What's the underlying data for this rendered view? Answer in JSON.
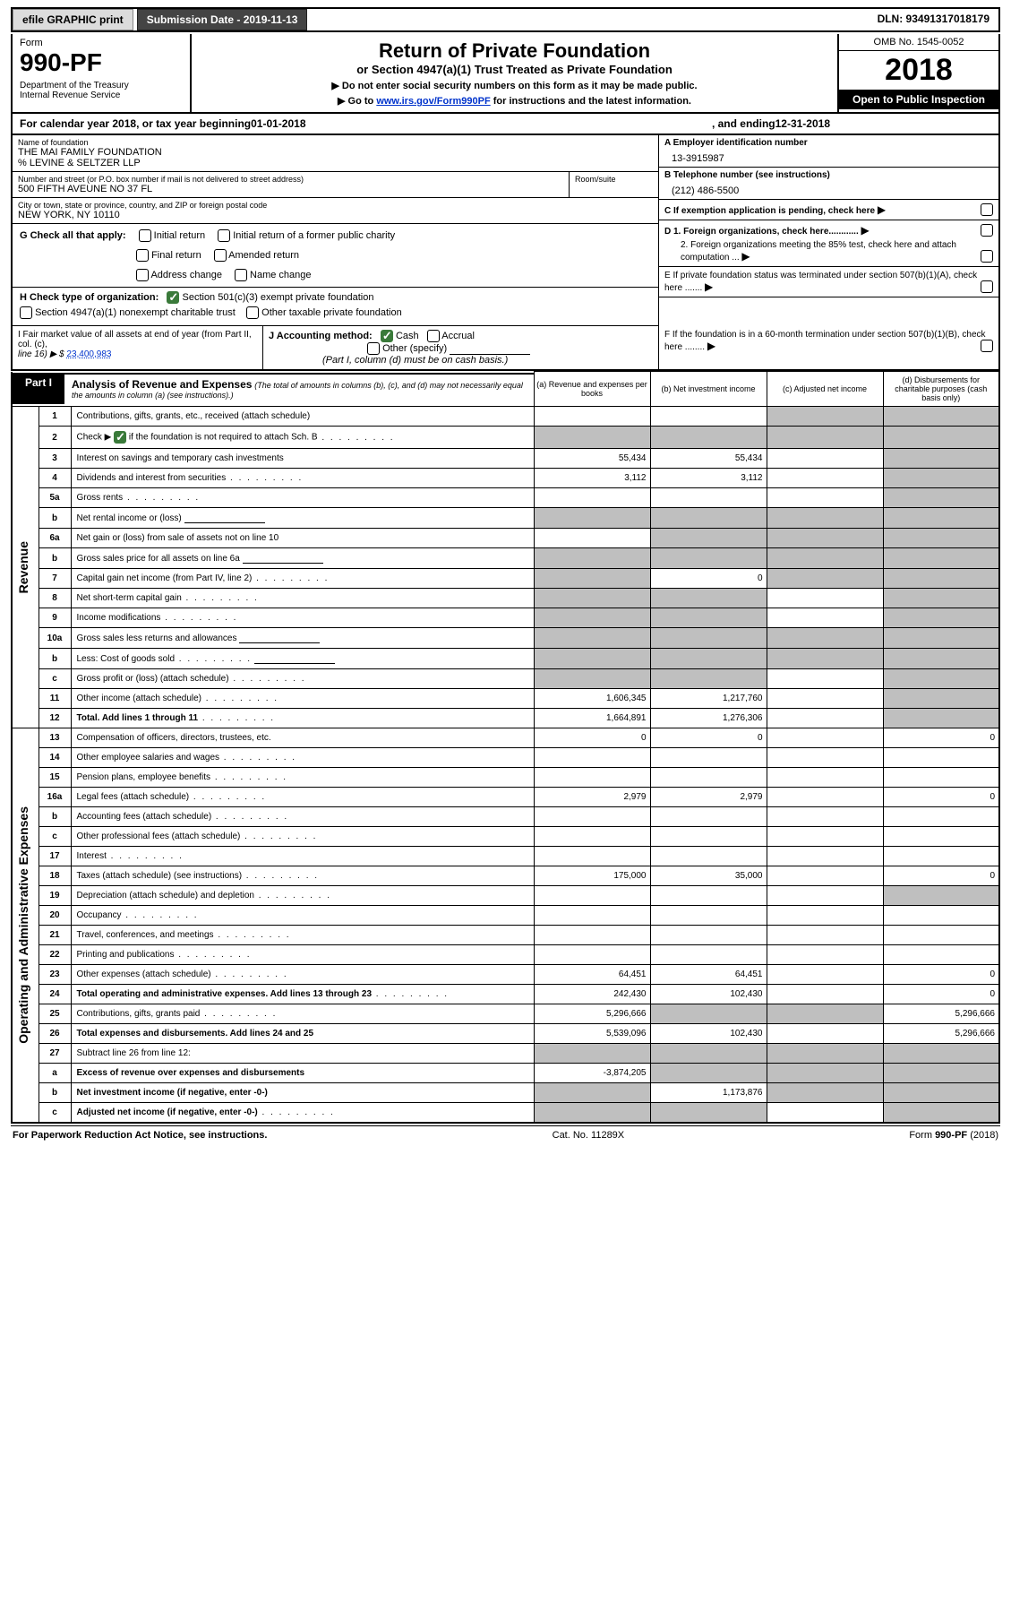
{
  "topbar": {
    "efile": "efile GRAPHIC print",
    "submission": "Submission Date - 2019-11-13",
    "dln": "DLN: 93491317018179"
  },
  "header": {
    "form_label": "Form",
    "form_number": "990-PF",
    "dept": "Department of the Treasury\nInternal Revenue Service",
    "title": "Return of Private Foundation",
    "subtitle": "or Section 4947(a)(1) Trust Treated as Private Foundation",
    "instr1": "▶ Do not enter social security numbers on this form as it may be made public.",
    "instr2_pre": "▶ Go to ",
    "instr2_link": "www.irs.gov/Form990PF",
    "instr2_post": " for instructions and the latest information.",
    "omb": "OMB No. 1545-0052",
    "year": "2018",
    "open_pub": "Open to Public Inspection"
  },
  "calyear": {
    "pre": "For calendar year 2018, or tax year beginning ",
    "begin": "01-01-2018",
    "mid": ", and ending ",
    "end": "12-31-2018"
  },
  "entity": {
    "name_lbl": "Name of foundation",
    "name": "THE MAI FAMILY FOUNDATION\n% LEVINE & SELTZER LLP",
    "addr_lbl": "Number and street (or P.O. box number if mail is not delivered to street address)",
    "addr": "500 FIFTH AVEUNE NO 37 FL",
    "room_lbl": "Room/suite",
    "city_lbl": "City or town, state or province, country, and ZIP or foreign postal code",
    "city": "NEW YORK, NY  10110",
    "ein_lbl": "A Employer identification number",
    "ein": "13-3915987",
    "phone_lbl": "B Telephone number (see instructions)",
    "phone": "(212) 486-5500",
    "c_lbl": "C If exemption application is pending, check here",
    "d1": "D 1. Foreign organizations, check here............",
    "d2": "2. Foreign organizations meeting the 85% test, check here and attach computation ...",
    "e_lbl": "E  If private foundation status was terminated under section 507(b)(1)(A), check here .......",
    "f_lbl": "F  If the foundation is in a 60-month termination under section 507(b)(1)(B), check here ........"
  },
  "g": {
    "label": "G Check all that apply:",
    "opts": [
      "Initial return",
      "Initial return of a former public charity",
      "Final return",
      "Amended return",
      "Address change",
      "Name change"
    ]
  },
  "h": {
    "label": "H Check type of organization:",
    "opt1": "Section 501(c)(3) exempt private foundation",
    "opt2": "Section 4947(a)(1) nonexempt charitable trust",
    "opt3": "Other taxable private foundation"
  },
  "i": {
    "label": "I Fair market value of all assets at end of year (from Part II, col. (c),",
    "line": "line 16) ▶ $",
    "value": "23,400,983"
  },
  "j": {
    "label": "J Accounting method:",
    "cash": "Cash",
    "accrual": "Accrual",
    "other": "Other (specify)",
    "note": "(Part I, column (d) must be on cash basis.)"
  },
  "part1": {
    "tab": "Part I",
    "title": "Analysis of Revenue and Expenses",
    "note": "(The total of amounts in columns (b), (c), and (d) may not necessarily equal the amounts in column (a) (see instructions).)",
    "col_a": "(a)   Revenue and expenses per books",
    "col_b": "(b)  Net investment income",
    "col_c": "(c)  Adjusted net income",
    "col_d": "(d)  Disbursements for charitable purposes (cash basis only)"
  },
  "vert": {
    "revenue": "Revenue",
    "expenses": "Operating and Administrative Expenses"
  },
  "rows": [
    {
      "n": "1",
      "d": "Contributions, gifts, grants, etc., received (attach schedule)",
      "a": "",
      "b": "",
      "c": "sh",
      "dcol": "sh"
    },
    {
      "n": "2",
      "d": "Check ▶ ☑ if the foundation is not required to attach Sch. B",
      "dots": 1,
      "a": "sh",
      "b": "sh",
      "c": "sh",
      "dcol": "sh",
      "checked": true
    },
    {
      "n": "3",
      "d": "Interest on savings and temporary cash investments",
      "a": "55,434",
      "b": "55,434",
      "c": "",
      "dcol": "sh"
    },
    {
      "n": "4",
      "d": "Dividends and interest from securities",
      "dots": 1,
      "a": "3,112",
      "b": "3,112",
      "c": "",
      "dcol": "sh"
    },
    {
      "n": "5a",
      "d": "Gross rents",
      "dots": 1,
      "a": "",
      "b": "",
      "c": "",
      "dcol": "sh"
    },
    {
      "n": "b",
      "d": "Net rental income or (loss)",
      "slot": 1,
      "a": "sh",
      "b": "sh",
      "c": "sh",
      "dcol": "sh"
    },
    {
      "n": "6a",
      "d": "Net gain or (loss) from sale of assets not on line 10",
      "a": "",
      "b": "sh",
      "c": "sh",
      "dcol": "sh"
    },
    {
      "n": "b",
      "d": "Gross sales price for all assets on line 6a",
      "slot": 1,
      "a": "sh",
      "b": "sh",
      "c": "sh",
      "dcol": "sh"
    },
    {
      "n": "7",
      "d": "Capital gain net income (from Part IV, line 2)",
      "dots": 1,
      "a": "sh",
      "b": "0",
      "c": "sh",
      "dcol": "sh"
    },
    {
      "n": "8",
      "d": "Net short-term capital gain",
      "dots": 1,
      "a": "sh",
      "b": "sh",
      "c": "",
      "dcol": "sh"
    },
    {
      "n": "9",
      "d": "Income modifications",
      "dots": 1,
      "a": "sh",
      "b": "sh",
      "c": "",
      "dcol": "sh"
    },
    {
      "n": "10a",
      "d": "Gross sales less returns and allowances",
      "slot": 1,
      "a": "sh",
      "b": "sh",
      "c": "sh",
      "dcol": "sh"
    },
    {
      "n": "b",
      "d": "Less: Cost of goods sold",
      "dots": 1,
      "slot": 1,
      "a": "sh",
      "b": "sh",
      "c": "sh",
      "dcol": "sh"
    },
    {
      "n": "c",
      "d": "Gross profit or (loss) (attach schedule)",
      "dots": 1,
      "a": "sh",
      "b": "sh",
      "c": "",
      "dcol": "sh"
    },
    {
      "n": "11",
      "d": "Other income (attach schedule)",
      "dots": 1,
      "a": "1,606,345",
      "b": "1,217,760",
      "c": "",
      "dcol": "sh"
    },
    {
      "n": "12",
      "d": "Total. Add lines 1 through 11",
      "dots": 1,
      "bold": 1,
      "a": "1,664,891",
      "b": "1,276,306",
      "c": "",
      "dcol": "sh"
    },
    {
      "n": "13",
      "d": "Compensation of officers, directors, trustees, etc.",
      "a": "0",
      "b": "0",
      "c": "",
      "dcol": "0",
      "sec": "exp"
    },
    {
      "n": "14",
      "d": "Other employee salaries and wages",
      "dots": 1,
      "a": "",
      "b": "",
      "c": "",
      "dcol": "",
      "sec": "exp"
    },
    {
      "n": "15",
      "d": "Pension plans, employee benefits",
      "dots": 1,
      "a": "",
      "b": "",
      "c": "",
      "dcol": "",
      "sec": "exp"
    },
    {
      "n": "16a",
      "d": "Legal fees (attach schedule)",
      "dots": 1,
      "a": "2,979",
      "b": "2,979",
      "c": "",
      "dcol": "0",
      "sec": "exp"
    },
    {
      "n": "b",
      "d": "Accounting fees (attach schedule)",
      "dots": 1,
      "a": "",
      "b": "",
      "c": "",
      "dcol": "",
      "sec": "exp"
    },
    {
      "n": "c",
      "d": "Other professional fees (attach schedule)",
      "dots": 1,
      "a": "",
      "b": "",
      "c": "",
      "dcol": "",
      "sec": "exp"
    },
    {
      "n": "17",
      "d": "Interest",
      "dots": 1,
      "a": "",
      "b": "",
      "c": "",
      "dcol": "",
      "sec": "exp"
    },
    {
      "n": "18",
      "d": "Taxes (attach schedule) (see instructions)",
      "dots": 1,
      "a": "175,000",
      "b": "35,000",
      "c": "",
      "dcol": "0",
      "sec": "exp"
    },
    {
      "n": "19",
      "d": "Depreciation (attach schedule) and depletion",
      "dots": 1,
      "a": "",
      "b": "",
      "c": "",
      "dcol": "sh",
      "sec": "exp"
    },
    {
      "n": "20",
      "d": "Occupancy",
      "dots": 1,
      "a": "",
      "b": "",
      "c": "",
      "dcol": "",
      "sec": "exp"
    },
    {
      "n": "21",
      "d": "Travel, conferences, and meetings",
      "dots": 1,
      "a": "",
      "b": "",
      "c": "",
      "dcol": "",
      "sec": "exp"
    },
    {
      "n": "22",
      "d": "Printing and publications",
      "dots": 1,
      "a": "",
      "b": "",
      "c": "",
      "dcol": "",
      "sec": "exp"
    },
    {
      "n": "23",
      "d": "Other expenses (attach schedule)",
      "dots": 1,
      "a": "64,451",
      "b": "64,451",
      "c": "",
      "dcol": "0",
      "sec": "exp"
    },
    {
      "n": "24",
      "d": "Total operating and administrative expenses. Add lines 13 through 23",
      "dots": 1,
      "bold": 1,
      "a": "242,430",
      "b": "102,430",
      "c": "",
      "dcol": "0",
      "sec": "exp"
    },
    {
      "n": "25",
      "d": "Contributions, gifts, grants paid",
      "dots": 1,
      "a": "5,296,666",
      "b": "sh",
      "c": "sh",
      "dcol": "5,296,666",
      "sec": "exp"
    },
    {
      "n": "26",
      "d": "Total expenses and disbursements. Add lines 24 and 25",
      "bold": 1,
      "a": "5,539,096",
      "b": "102,430",
      "c": "",
      "dcol": "5,296,666",
      "sec": "exp"
    },
    {
      "n": "27",
      "d": "Subtract line 26 from line 12:",
      "a": "sh",
      "b": "sh",
      "c": "sh",
      "dcol": "sh",
      "sec": "exp"
    },
    {
      "n": "a",
      "d": "Excess of revenue over expenses and disbursements",
      "bold": 1,
      "a": "-3,874,205",
      "b": "sh",
      "c": "sh",
      "dcol": "sh",
      "sec": "exp"
    },
    {
      "n": "b",
      "d": "Net investment income (if negative, enter -0-)",
      "bold": 1,
      "a": "sh",
      "b": "1,173,876",
      "c": "sh",
      "dcol": "sh",
      "sec": "exp"
    },
    {
      "n": "c",
      "d": "Adjusted net income (if negative, enter -0-)",
      "dots": 1,
      "bold": 1,
      "a": "sh",
      "b": "sh",
      "c": "",
      "dcol": "sh",
      "sec": "exp"
    }
  ],
  "footer": {
    "left": "For Paperwork Reduction Act Notice, see instructions.",
    "mid": "Cat. No. 11289X",
    "right_pre": "Form ",
    "right_form": "990-PF",
    "right_post": " (2018)"
  }
}
